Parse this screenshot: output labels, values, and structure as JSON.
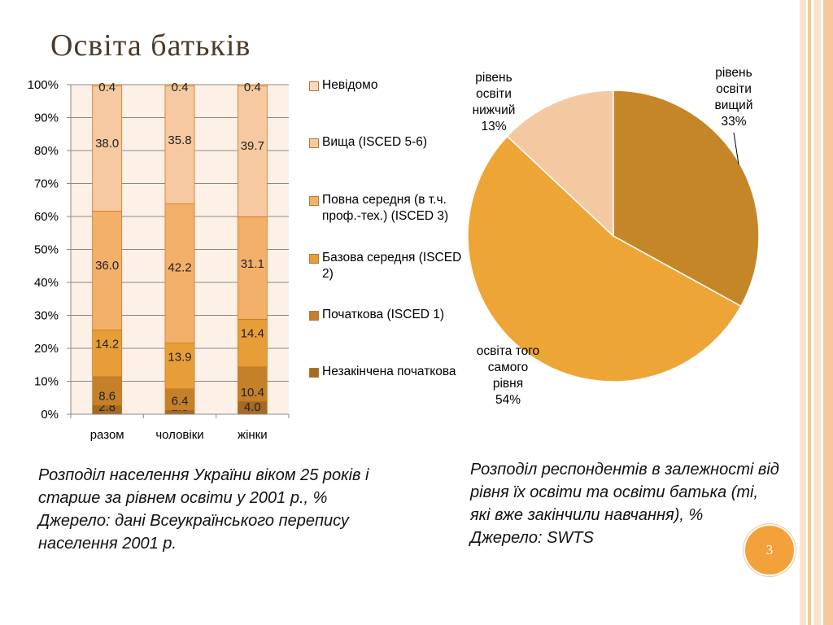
{
  "slide": {
    "title": "Освіта батьків",
    "page_number": "3"
  },
  "chart_data": [
    {
      "type": "bar",
      "stacked": true,
      "categories": [
        "разом",
        "чоловіки",
        "жінки"
      ],
      "yticks": [
        "0%",
        "10%",
        "20%",
        "30%",
        "40%",
        "50%",
        "60%",
        "70%",
        "80%",
        "90%",
        "100%"
      ],
      "ylim": [
        0,
        100
      ],
      "series": [
        {
          "name": "Незакінчена початкова",
          "color": "#a56a20",
          "values": [
            2.8,
            1.3,
            4.0
          ]
        },
        {
          "name": "Початкова (ISCED 1)",
          "color": "#c4812a",
          "values": [
            8.6,
            6.4,
            10.4
          ]
        },
        {
          "name": "Базова середня (ISCED 2)",
          "color": "#e89e38",
          "values": [
            14.2,
            13.9,
            14.4
          ]
        },
        {
          "name": "Повна середня (в т.ч. проф.-тех.) (ISCED 3)",
          "color": "#f2b06a",
          "values": [
            36.0,
            42.2,
            31.1
          ]
        },
        {
          "name": "Вища (ISCED 5-6)",
          "color": "#f6c9a0",
          "values": [
            38.0,
            35.8,
            39.7
          ]
        },
        {
          "name": "Невідомо",
          "color": "#fad9ba",
          "values": [
            0.4,
            0.4,
            0.4
          ]
        }
      ],
      "data_labels": [
        [
          "2.8",
          "1.3",
          "4.0"
        ],
        [
          "8.6",
          "6.4",
          "10.4"
        ],
        [
          "14.2",
          "13.9",
          "14.4"
        ],
        [
          "36.0",
          "42.2",
          "31.1"
        ],
        [
          "38.0",
          "35.8",
          "39.7"
        ],
        [
          "0.4",
          "0.4",
          "0.4"
        ]
      ],
      "legend": [
        "Невідомо",
        "Вища (ISCED 5-6)",
        "Повна середня (в т.ч. проф.-тех.) (ISCED 3)",
        "Базова середня (ISCED 2)",
        "Початкова (ISCED 1)",
        "Незакінчена початкова"
      ],
      "legend_position": "right",
      "plot_background": "#fdf0e6",
      "grid": true
    },
    {
      "type": "pie",
      "slices": [
        {
          "label": "рівень освіти вищий 33%",
          "value": 33,
          "color": "#c58628"
        },
        {
          "label": "освіта того самого рівня 54%",
          "value": 54,
          "color": "#eda535"
        },
        {
          "label": "рівень освіти нижчий 13%",
          "value": 13,
          "color": "#f4c9a2"
        }
      ]
    }
  ],
  "pie_labels": {
    "higher": [
      "рівень",
      "освіти",
      "вищий",
      "33%"
    ],
    "same": [
      "освіта того",
      "самого",
      "рівня",
      "54%"
    ],
    "lower": [
      "рівень",
      "освіти",
      "нижчий",
      "13%"
    ]
  },
  "captions": {
    "left": [
      "Розподіл населення України віком 25 років і старше за рівнем освіти у 2001 р., %",
      "Джерело: дані Всеукраїнського перепису населення 2001 р."
    ],
    "right": [
      "Розподіл респондентів в залежності від рівня їх освіти та освіти батька (ті, які вже закінчили навчання), %",
      "Джерело: SWTS"
    ]
  },
  "theme": {
    "stripe_colors": [
      "#fbe3cc",
      "#f5c99c",
      "#fbe3cc",
      "#f5c99c"
    ]
  }
}
